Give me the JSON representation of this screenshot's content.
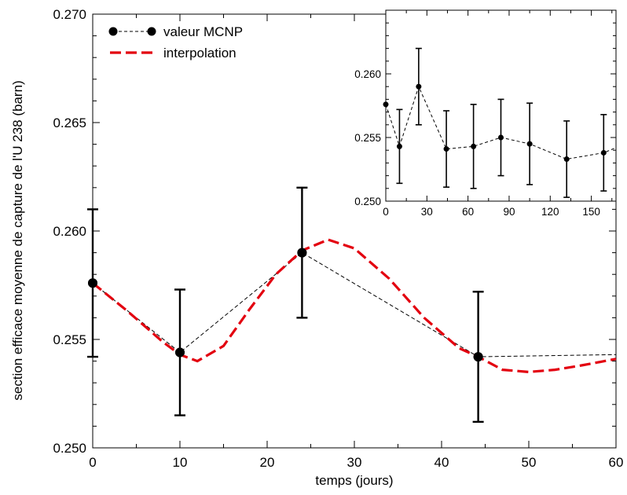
{
  "chart_data": [
    {
      "id": "main",
      "type": "line",
      "title": "",
      "xlabel": "temps (jours)",
      "ylabel": "section efficace moyenne de capture de l'U 238 (barn)",
      "xlim": [
        0,
        60
      ],
      "ylim": [
        0.25,
        0.27
      ],
      "xticks": [
        0,
        10,
        20,
        30,
        40,
        50,
        60
      ],
      "yticks": [
        0.25,
        0.255,
        0.26,
        0.265,
        0.27
      ],
      "ytick_labels": [
        "0.250",
        "0.255",
        "0.260",
        "0.265",
        "0.270"
      ],
      "grid": false,
      "legend": {
        "position": "top-left",
        "entries": [
          {
            "label": "valeur MCNP",
            "style": "black dashed line with circle markers",
            "color": "#000000"
          },
          {
            "label": "interpolation",
            "style": "red long-dashed line",
            "color": "#e3000f"
          }
        ]
      },
      "series": [
        {
          "name": "valeur MCNP",
          "color": "#000000",
          "x": [
            0,
            10,
            24,
            44.2,
            60
          ],
          "y": [
            0.2576,
            0.2544,
            0.259,
            0.2542,
            0.2543
          ],
          "error": [
            0.0034,
            0.0029,
            0.003,
            0.003,
            null
          ],
          "markers": [
            true,
            true,
            true,
            true,
            false
          ]
        },
        {
          "name": "interpolation",
          "color": "#e3000f",
          "x": [
            0,
            4,
            8,
            10,
            12,
            15,
            18,
            21,
            24,
            27,
            30,
            34,
            38,
            42,
            44.2,
            47,
            50,
            53,
            56,
            60
          ],
          "y": [
            0.2576,
            0.2563,
            0.2549,
            0.2543,
            0.254,
            0.2547,
            0.2564,
            0.258,
            0.2591,
            0.2596,
            0.2592,
            0.2578,
            0.256,
            0.2546,
            0.2542,
            0.2536,
            0.2535,
            0.2536,
            0.2538,
            0.2541
          ]
        }
      ]
    },
    {
      "id": "inset",
      "type": "line",
      "title": "",
      "xlabel": "",
      "ylabel": "",
      "xlim": [
        0,
        168
      ],
      "ylim": [
        0.25,
        0.265
      ],
      "xticks": [
        0,
        30,
        60,
        90,
        120,
        150
      ],
      "yticks": [
        0.25,
        0.255,
        0.26
      ],
      "ytick_labels": [
        "0.250",
        "0.255",
        "0.260"
      ],
      "grid": false,
      "series": [
        {
          "color": "#000000",
          "x": [
            0,
            10,
            24,
            44.2,
            64,
            84,
            105,
            132,
            159,
            168
          ],
          "y": [
            0.2576,
            0.2543,
            0.259,
            0.2541,
            0.2543,
            0.255,
            0.2545,
            0.2533,
            0.2538,
            0.2542
          ],
          "error": [
            null,
            0.0029,
            0.003,
            0.003,
            0.0033,
            0.003,
            0.0032,
            0.003,
            0.003,
            null
          ],
          "markers": [
            true,
            true,
            true,
            true,
            true,
            true,
            true,
            true,
            true,
            false
          ]
        }
      ]
    }
  ]
}
